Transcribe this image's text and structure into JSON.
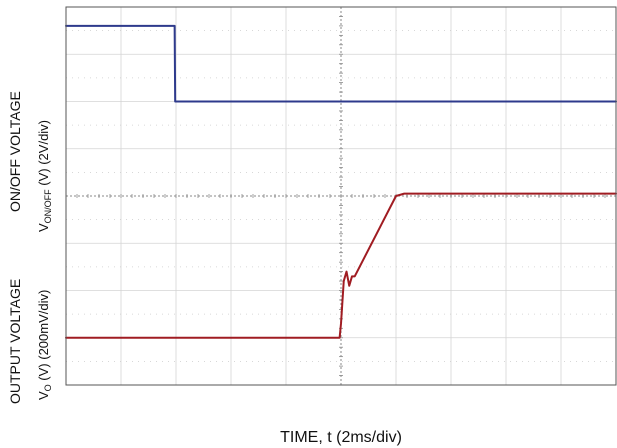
{
  "chart_data": {
    "type": "line",
    "title": "",
    "xlabel": "TIME, t (2ms/div)",
    "x_unit": "ms",
    "x_per_div": 2,
    "x_divisions": 10,
    "xlim": [
      0,
      20
    ],
    "y_divisions": 8,
    "grid": true,
    "ylabels": [
      {
        "line1": "ON/OFF VOLTAGE",
        "line2_main": "V",
        "line2_sub": "ON/OFF",
        "line2_rest": " (V) (2V/div)"
      },
      {
        "line1": "OUTPUT VOLTAGE",
        "line2_main": "V",
        "line2_sub": "O",
        "line2_rest": " (V) (200mV/div)"
      }
    ],
    "series": [
      {
        "color": "#2e3a8c",
        "y_unit": "div",
        "x": [
          0,
          3.95,
          3.97,
          20
        ],
        "y": [
          7.6,
          7.6,
          6.0,
          6.0
        ]
      },
      {
        "color": "#a01c22",
        "y_unit": "div",
        "x": [
          0,
          9.95,
          10.0,
          10.1,
          10.2,
          10.3,
          10.4,
          10.5,
          12.0,
          12.3,
          20
        ],
        "y": [
          1.0,
          1.0,
          1.3,
          2.2,
          2.4,
          2.1,
          2.3,
          2.3,
          4.0,
          4.05,
          4.05
        ]
      }
    ]
  }
}
